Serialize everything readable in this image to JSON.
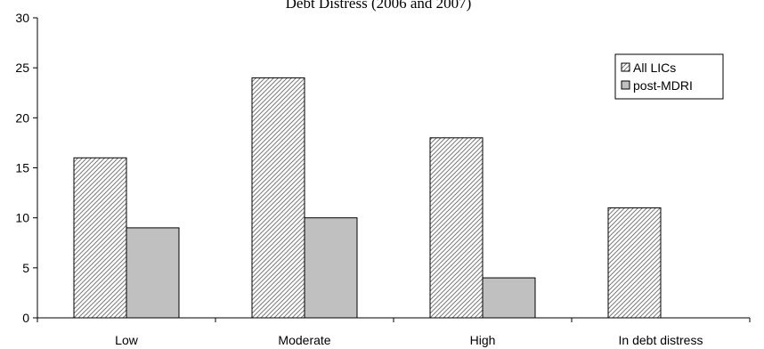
{
  "chart_data": {
    "type": "bar",
    "title": "Debt Distress (2006 and 2007)",
    "categories": [
      "Low",
      "Moderate",
      "High",
      "In debt distress"
    ],
    "series": [
      {
        "name": "All LICs",
        "values": [
          16,
          24,
          18,
          11
        ],
        "fill": "hatched"
      },
      {
        "name": "post-MDRI",
        "values": [
          9,
          10,
          4,
          0
        ],
        "color": "#c0c0c0"
      }
    ],
    "ylim": [
      0,
      30
    ],
    "yticks": [
      0,
      5,
      10,
      15,
      20,
      25,
      30
    ],
    "xlabel": "",
    "ylabel": "",
    "grid": false,
    "legend_position": "top-right"
  }
}
